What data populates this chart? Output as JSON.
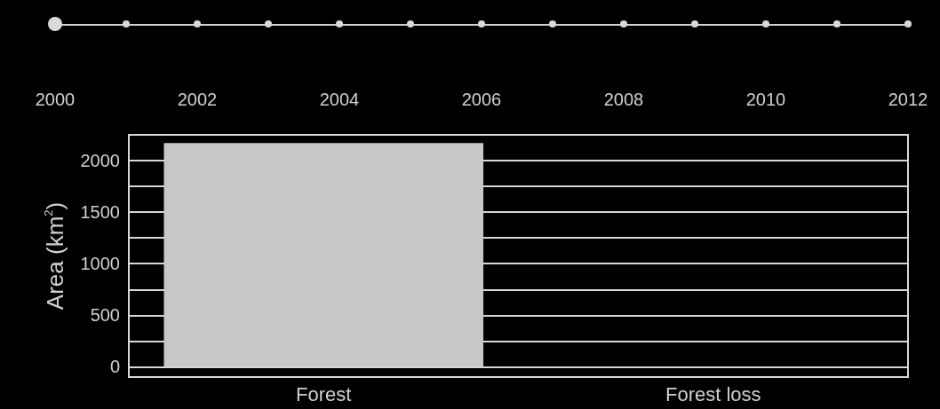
{
  "chart_data": {
    "type": "bar",
    "categories": [
      "Forest",
      "Forest loss"
    ],
    "series": [
      {
        "color": "#c8c8c8",
        "values": [
          2170,
          0
        ]
      }
    ],
    "ylabel": "Area (km$^{2}$)",
    "ylim": [
      -100,
      2250
    ],
    "yticks": [
      0,
      {
        "value": 250,
        "label": null
      },
      500,
      {
        "value": 750,
        "label": null
      },
      1000,
      {
        "value": 1250,
        "label": null
      },
      1500,
      {
        "value": 1750,
        "label": null
      },
      2000
    ],
    "x2lim": [
      2000,
      2012
    ],
    "x2ticks": [
      2000,
      2002,
      2004,
      2006,
      2008,
      2010,
      2012
    ],
    "grid": "y"
  }
}
